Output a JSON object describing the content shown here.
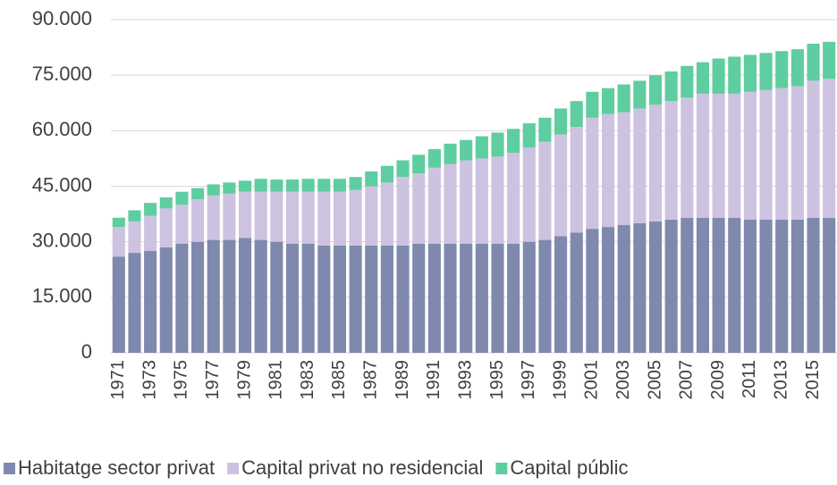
{
  "chart_data": {
    "type": "stacked_bar",
    "categories": [
      "1971",
      null,
      "1973",
      null,
      "1975",
      null,
      "1977",
      null,
      "1979",
      null,
      "1981",
      null,
      "1983",
      null,
      "1985",
      null,
      "1987",
      null,
      "1989",
      null,
      "1991",
      null,
      "1993",
      null,
      "1995",
      null,
      "1997",
      null,
      "1999",
      null,
      "2001",
      null,
      "2003",
      null,
      "2005",
      null,
      "2007",
      null,
      "2009",
      null,
      "2011",
      null,
      "2013",
      null,
      "2015",
      null
    ],
    "series": [
      {
        "name": "Habitatge sector privat",
        "color": "#7f89ad",
        "values": [
          26000,
          27000,
          27500,
          28500,
          29500,
          30000,
          30500,
          30500,
          31000,
          30500,
          30000,
          29500,
          29500,
          29000,
          29000,
          29000,
          29000,
          29000,
          29000,
          29500,
          29500,
          29500,
          29500,
          29500,
          29500,
          29500,
          30000,
          30500,
          31500,
          32500,
          33500,
          34000,
          34500,
          35000,
          35500,
          36000,
          36500,
          36500,
          36500,
          36500,
          36000,
          36000,
          36000,
          36000,
          36500,
          36500
        ]
      },
      {
        "name": "Capital privat no residencial",
        "color": "#cdc3e0",
        "values": [
          8000,
          8500,
          9500,
          10500,
          10500,
          11500,
          12000,
          12500,
          12500,
          13000,
          13500,
          14000,
          14000,
          14500,
          14500,
          15000,
          16000,
          17000,
          18500,
          19000,
          20500,
          21500,
          22500,
          23000,
          23500,
          24500,
          25500,
          26500,
          27500,
          28500,
          30000,
          30500,
          30500,
          31000,
          31500,
          32000,
          32500,
          33500,
          33500,
          33500,
          34500,
          35000,
          35500,
          36000,
          37000,
          37500
        ]
      },
      {
        "name": "Capital públic",
        "color": "#5ecda0",
        "values": [
          2500,
          3000,
          3500,
          3000,
          3500,
          3000,
          3000,
          3000,
          3000,
          3500,
          3300,
          3300,
          3500,
          3500,
          3500,
          3500,
          4000,
          4500,
          4500,
          5000,
          5000,
          5500,
          5500,
          6000,
          6500,
          6500,
          6500,
          6500,
          7000,
          7000,
          7000,
          7000,
          7500,
          7500,
          8000,
          8000,
          8500,
          8500,
          9500,
          10000,
          10000,
          10000,
          10000,
          10000,
          10000,
          10000
        ]
      }
    ],
    "ylim": [
      0,
      90000
    ],
    "yticks": [
      0,
      {
        "value": 15000,
        "label": "15.000"
      },
      {
        "value": 30000,
        "label": "30.000"
      },
      {
        "value": 45000,
        "label": "45.000"
      },
      {
        "value": 60000,
        "label": "60.000"
      },
      {
        "value": 75000,
        "label": "75.000"
      },
      {
        "value": 90000,
        "label": "90.000"
      }
    ],
    "grid": true,
    "legend": "bottom"
  }
}
